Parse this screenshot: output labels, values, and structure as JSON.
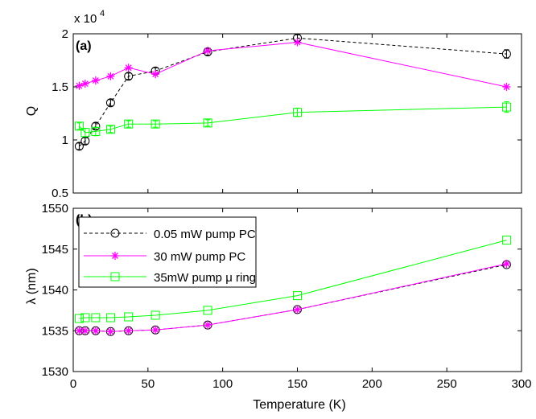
{
  "figure": {
    "xlabel": "Temperature (K)",
    "x_ticks": [
      "0",
      "50",
      "100",
      "150",
      "200",
      "250",
      "300"
    ]
  },
  "colors": {
    "series_0p05": "#000000",
    "series_30": "#ff00ff",
    "series_35": "#00ff00"
  },
  "chart_data": [
    {
      "type": "line",
      "panel_label": "(a)",
      "ylabel": "Q",
      "y_multiplier": "x 10",
      "y_multiplier_exp": "4",
      "xlim": [
        0,
        300
      ],
      "ylim": [
        0.5,
        2.0
      ],
      "y_ticks": [
        "0.5",
        "1",
        "1.5",
        "2"
      ],
      "grid": false,
      "series": [
        {
          "name": "0.05 mW pump PC",
          "marker": "circle",
          "line": "dashed",
          "x": [
            4,
            8,
            15,
            25,
            37,
            55,
            90,
            150,
            290
          ],
          "y": [
            0.94,
            0.99,
            1.13,
            1.35,
            1.6,
            1.65,
            1.83,
            1.96,
            1.81
          ],
          "err": [
            0.03,
            0.03,
            0.03,
            0.03,
            0.03,
            0.03,
            0.03,
            0.03,
            0.04
          ]
        },
        {
          "name": "30 mW pump PC",
          "marker": "star",
          "line": "solid",
          "x": [
            4,
            8,
            15,
            25,
            37,
            55,
            90,
            150,
            290
          ],
          "y": [
            1.51,
            1.53,
            1.56,
            1.6,
            1.68,
            1.62,
            1.84,
            1.92,
            1.5
          ],
          "err": [
            0,
            0,
            0,
            0,
            0,
            0,
            0,
            0,
            0
          ]
        },
        {
          "name": "35mW pump μ ring",
          "marker": "square",
          "line": "solid",
          "x": [
            4,
            8,
            15,
            25,
            37,
            55,
            90,
            150,
            290
          ],
          "y": [
            1.13,
            1.07,
            1.08,
            1.1,
            1.15,
            1.15,
            1.16,
            1.26,
            1.31
          ],
          "err": [
            0.03,
            0.04,
            0.04,
            0.03,
            0.03,
            0.03,
            0.03,
            0.04,
            0.05
          ]
        }
      ]
    },
    {
      "type": "line",
      "panel_label": "(b)",
      "ylabel": "λ (nm)",
      "xlim": [
        0,
        300
      ],
      "ylim": [
        1530,
        1550
      ],
      "y_ticks": [
        "1530",
        "1535",
        "1540",
        "1545",
        "1550"
      ],
      "grid": false,
      "legend_position": "top-left",
      "series": [
        {
          "name": "0.05 mW pump PC",
          "marker": "circle",
          "line": "dashed",
          "x": [
            4,
            8,
            15,
            25,
            37,
            55,
            90,
            150,
            290
          ],
          "y": [
            1535.0,
            1535.0,
            1535.0,
            1534.9,
            1535.0,
            1535.1,
            1535.7,
            1537.6,
            1543.1
          ]
        },
        {
          "name": "30 mW pump PC",
          "marker": "star",
          "line": "solid",
          "x": [
            4,
            8,
            15,
            25,
            37,
            55,
            90,
            150,
            290
          ],
          "y": [
            1535.0,
            1535.0,
            1535.0,
            1534.9,
            1535.0,
            1535.1,
            1535.7,
            1537.6,
            1543.2
          ]
        },
        {
          "name": "35mW pump μ ring",
          "marker": "square",
          "line": "solid",
          "x": [
            4,
            8,
            15,
            25,
            37,
            55,
            90,
            150,
            290
          ],
          "y": [
            1536.5,
            1536.6,
            1536.6,
            1536.6,
            1536.7,
            1536.9,
            1537.5,
            1539.3,
            1546.1
          ]
        }
      ]
    }
  ]
}
